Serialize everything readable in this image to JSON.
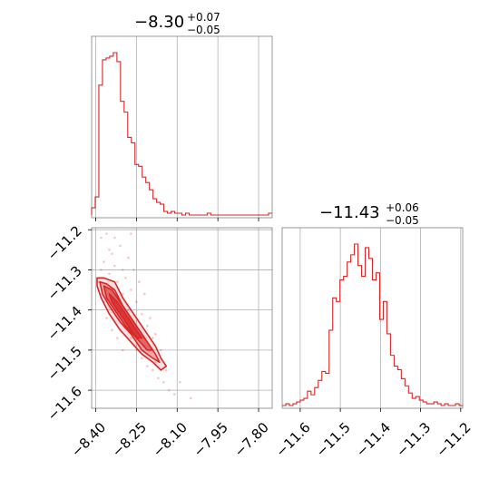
{
  "chart_data": {
    "type": "corner",
    "color": "#d62728",
    "parameters": [
      {
        "title": {
          "median": "−8.30",
          "upper": "+0.07",
          "lower": "−0.05"
        },
        "range": [
          -8.415,
          -7.75
        ],
        "ticks": [
          {
            "value": -8.4,
            "label": "−8.40"
          },
          {
            "value": -8.25,
            "label": "−8.25"
          },
          {
            "value": -8.1,
            "label": "−8.10"
          },
          {
            "value": -7.95,
            "label": "−7.95"
          },
          {
            "value": -7.8,
            "label": "−7.80"
          }
        ],
        "histogram": {
          "bin_start": -8.415,
          "bin_width": 0.0133,
          "counts": [
            0.04,
            0.1,
            0.72,
            0.86,
            0.87,
            0.88,
            0.9,
            0.85,
            0.63,
            0.57,
            0.43,
            0.4,
            0.28,
            0.27,
            0.21,
            0.18,
            0.14,
            0.09,
            0.07,
            0.06,
            0.02,
            0.01,
            0.02,
            0.01,
            0.01,
            0.0,
            0.01,
            0.0,
            0.0,
            0.0,
            0.0,
            0.0,
            0.01,
            0.0,
            0.0,
            0.0,
            0.0,
            0.0,
            0.0,
            0.0,
            0.0,
            0.0,
            0.0,
            0.0,
            0.0,
            0.0,
            0.0,
            0.0,
            0.0,
            0.01
          ]
        }
      },
      {
        "title": {
          "median": "−11.43",
          "upper": "+0.06",
          "lower": "−0.05"
        },
        "range": [
          -11.645,
          -11.195
        ],
        "ticks": [
          {
            "value": -11.6,
            "label": "−11.6"
          },
          {
            "value": -11.5,
            "label": "−11.5"
          },
          {
            "value": -11.4,
            "label": "−11.4"
          },
          {
            "value": -11.3,
            "label": "−11.3"
          },
          {
            "value": -11.2,
            "label": "−11.2"
          }
        ],
        "histogram": {
          "bin_start": -11.645,
          "bin_width": 0.009,
          "counts": [
            0.0,
            0.01,
            0.0,
            0.01,
            0.02,
            0.03,
            0.04,
            0.08,
            0.06,
            0.1,
            0.14,
            0.19,
            0.18,
            0.42,
            0.6,
            0.58,
            0.7,
            0.72,
            0.8,
            0.84,
            0.9,
            0.78,
            0.72,
            0.88,
            0.82,
            0.7,
            0.74,
            0.48,
            0.58,
            0.4,
            0.28,
            0.22,
            0.2,
            0.15,
            0.11,
            0.07,
            0.04,
            0.05,
            0.03,
            0.02,
            0.01,
            0.01,
            0.02,
            0.01,
            0.0,
            0.01,
            0.0,
            0.0,
            0.01,
            0.0
          ]
        }
      }
    ],
    "joint": {
      "samples": [
        [
          -8.39,
          -11.33
        ],
        [
          -8.38,
          -11.3
        ],
        [
          -8.37,
          -11.28
        ],
        [
          -8.36,
          -11.35
        ],
        [
          -8.35,
          -11.31
        ],
        [
          -8.34,
          -11.26
        ],
        [
          -8.33,
          -11.38
        ],
        [
          -8.32,
          -11.33
        ],
        [
          -8.31,
          -11.42
        ],
        [
          -8.3,
          -11.36
        ],
        [
          -8.3,
          -11.3
        ],
        [
          -8.29,
          -11.44
        ],
        [
          -8.28,
          -11.4
        ],
        [
          -8.27,
          -11.47
        ],
        [
          -8.26,
          -11.43
        ],
        [
          -8.25,
          -11.5
        ],
        [
          -8.24,
          -11.46
        ],
        [
          -8.23,
          -11.52
        ],
        [
          -8.22,
          -11.49
        ],
        [
          -8.21,
          -11.54
        ],
        [
          -8.2,
          -11.5
        ],
        [
          -8.19,
          -11.55
        ],
        [
          -8.18,
          -11.53
        ],
        [
          -8.17,
          -11.57
        ],
        [
          -8.15,
          -11.58
        ],
        [
          -8.13,
          -11.6
        ],
        [
          -8.11,
          -11.61
        ],
        [
          -8.35,
          -11.25
        ],
        [
          -8.33,
          -11.22
        ],
        [
          -8.31,
          -11.24
        ],
        [
          -8.28,
          -11.27
        ],
        [
          -8.26,
          -11.3
        ],
        [
          -8.24,
          -11.33
        ],
        [
          -8.22,
          -11.36
        ],
        [
          -8.2,
          -11.42
        ],
        [
          -8.37,
          -11.38
        ],
        [
          -8.36,
          -11.42
        ],
        [
          -8.34,
          -11.45
        ],
        [
          -8.32,
          -11.47
        ],
        [
          -8.3,
          -11.5
        ],
        [
          -8.27,
          -11.35
        ],
        [
          -8.25,
          -11.38
        ],
        [
          -8.23,
          -11.41
        ],
        [
          -8.21,
          -11.44
        ],
        [
          -8.19,
          -11.47
        ],
        [
          -8.38,
          -11.22
        ],
        [
          -8.36,
          -11.21
        ],
        [
          -8.33,
          -11.29
        ],
        [
          -8.29,
          -11.32
        ],
        [
          -8.27,
          -11.21
        ],
        [
          -8.18,
          -11.46
        ],
        [
          -8.16,
          -11.5
        ],
        [
          -8.14,
          -11.55
        ],
        [
          -8.09,
          -11.58
        ],
        [
          -8.05,
          -11.62
        ]
      ],
      "contours": [
        [
          [
            -8.395,
            -11.32
          ],
          [
            -8.37,
            -11.32
          ],
          [
            -8.33,
            -11.33
          ],
          [
            -8.3,
            -11.37
          ],
          [
            -8.27,
            -11.4
          ],
          [
            -8.24,
            -11.43
          ],
          [
            -8.21,
            -11.46
          ],
          [
            -8.18,
            -11.49
          ],
          [
            -8.16,
            -11.52
          ],
          [
            -8.14,
            -11.54
          ],
          [
            -8.16,
            -11.55
          ],
          [
            -8.19,
            -11.53
          ],
          [
            -8.23,
            -11.51
          ],
          [
            -8.27,
            -11.48
          ],
          [
            -8.31,
            -11.45
          ],
          [
            -8.35,
            -11.41
          ],
          [
            -8.38,
            -11.37
          ],
          [
            -8.395,
            -11.34
          ]
        ],
        [
          [
            -8.385,
            -11.33
          ],
          [
            -8.36,
            -11.335
          ],
          [
            -8.33,
            -11.35
          ],
          [
            -8.3,
            -11.39
          ],
          [
            -8.27,
            -11.42
          ],
          [
            -8.24,
            -11.45
          ],
          [
            -8.21,
            -11.48
          ],
          [
            -8.18,
            -11.51
          ],
          [
            -8.165,
            -11.53
          ],
          [
            -8.19,
            -11.52
          ],
          [
            -8.23,
            -11.5
          ],
          [
            -8.27,
            -11.46
          ],
          [
            -8.31,
            -11.43
          ],
          [
            -8.35,
            -11.39
          ],
          [
            -8.375,
            -11.36
          ]
        ],
        [
          [
            -8.37,
            -11.34
          ],
          [
            -8.34,
            -11.35
          ],
          [
            -8.31,
            -11.38
          ],
          [
            -8.28,
            -11.41
          ],
          [
            -8.25,
            -11.44
          ],
          [
            -8.22,
            -11.47
          ],
          [
            -8.19,
            -11.5
          ],
          [
            -8.21,
            -11.5
          ],
          [
            -8.25,
            -11.47
          ],
          [
            -8.29,
            -11.44
          ],
          [
            -8.33,
            -11.4
          ],
          [
            -8.36,
            -11.37
          ]
        ],
        [
          [
            -8.35,
            -11.36
          ],
          [
            -8.32,
            -11.38
          ],
          [
            -8.29,
            -11.41
          ],
          [
            -8.26,
            -11.44
          ],
          [
            -8.23,
            -11.47
          ],
          [
            -8.25,
            -11.47
          ],
          [
            -8.28,
            -11.44
          ],
          [
            -8.31,
            -11.41
          ],
          [
            -8.34,
            -11.38
          ]
        ]
      ]
    }
  }
}
